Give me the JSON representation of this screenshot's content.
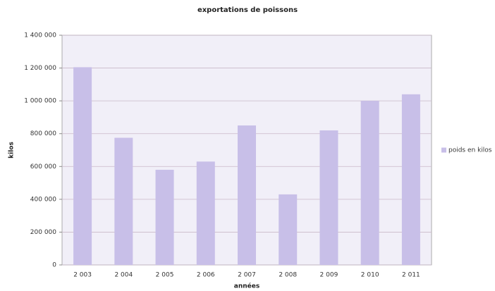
{
  "chart_data": {
    "type": "bar",
    "title": "exportations de poissons",
    "y_label": "kilos",
    "x_label": "années",
    "categories": [
      "2 003",
      "2 004",
      "2 005",
      "2 006",
      "2 007",
      "2 008",
      "2 009",
      "2 010",
      "2 011"
    ],
    "series": [
      {
        "name": "poids en kilos",
        "color": "#c8bfe8",
        "values": [
          1205000,
          775000,
          580000,
          630000,
          850000,
          430000,
          820000,
          1000000,
          1040000
        ]
      }
    ],
    "ylim": [
      0,
      1400000
    ],
    "yticks": [
      0,
      {
        "value": 200000,
        "label": "200 000"
      },
      {
        "value": 400000,
        "label": "400 000"
      },
      {
        "value": 600000,
        "label": "600 000"
      },
      {
        "value": 800000,
        "label": "800 000"
      },
      {
        "value": 1000000,
        "label": "1 000 000"
      },
      {
        "value": 1200000,
        "label": "1 200 000"
      },
      {
        "value": 1400000,
        "label": "1 400 000"
      }
    ],
    "grid": true,
    "legend": "right"
  }
}
